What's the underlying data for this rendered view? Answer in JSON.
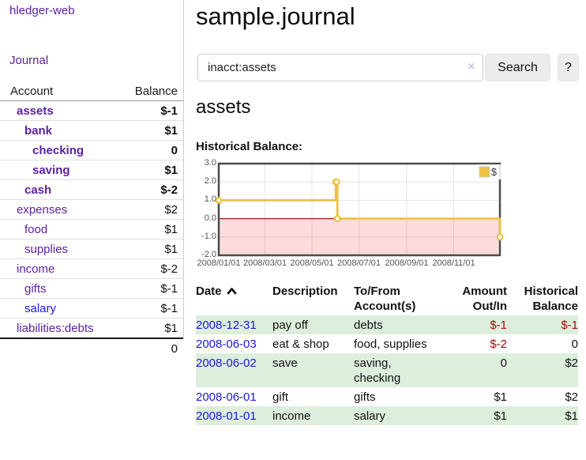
{
  "colors": {
    "link_purple": "#5c21a0",
    "link_blue": "#1a16dd",
    "negative_strong": "#a40808",
    "negative_weak": "#c07b7b",
    "stripe_green": "#ddeedd",
    "chart_gold": "#edc240",
    "chart_negative_region": "#fbdbdb",
    "chart_zero_line": "#9e1a1a",
    "chart_border": "#4c4c4c",
    "axis_text": "#545454",
    "button_bg": "#ececec"
  },
  "sidebar": {
    "brand": "hledger-web",
    "nav_journal": "Journal",
    "accounts_table": {
      "headers": {
        "account": "Account",
        "balance": "Balance"
      },
      "rows": [
        {
          "name": "assets",
          "level": 0,
          "bold": true,
          "balance": "$-1",
          "balance_class": "neg-strong"
        },
        {
          "name": "bank",
          "level": 1,
          "bold": true,
          "balance": "$1",
          "balance_class": ""
        },
        {
          "name": "checking",
          "level": 2,
          "bold": true,
          "balance": "0",
          "balance_class": ""
        },
        {
          "name": "saving",
          "level": 2,
          "bold": true,
          "balance": "$1",
          "balance_class": ""
        },
        {
          "name": "cash",
          "level": 1,
          "bold": true,
          "balance": "$-2",
          "balance_class": "neg-strong"
        },
        {
          "name": "expenses",
          "level": 0,
          "bold": false,
          "balance": "$2",
          "balance_class": ""
        },
        {
          "name": "food",
          "level": 1,
          "bold": false,
          "balance": "$1",
          "balance_class": ""
        },
        {
          "name": "supplies",
          "level": 1,
          "bold": false,
          "balance": "$1",
          "balance_class": ""
        },
        {
          "name": "income",
          "level": 0,
          "bold": false,
          "balance": "$-2",
          "balance_class": "neg-weak"
        },
        {
          "name": "gifts",
          "level": 1,
          "bold": false,
          "balance": "$-1",
          "balance_class": "neg-weak"
        },
        {
          "name": "salary",
          "level": 1,
          "bold": false,
          "balance": "$-1",
          "balance_class": "neg-weak",
          "link_class": "blue"
        },
        {
          "name": "liabilities:debts",
          "level": 0,
          "bold": false,
          "balance": "$1",
          "balance_class": ""
        }
      ],
      "total": "0"
    }
  },
  "main": {
    "title": "sample.journal",
    "search": {
      "value": "inacct:assets",
      "clear_icon": "×",
      "button": "Search",
      "help_button": "?"
    },
    "account_heading": "assets",
    "chart_heading": "Historical Balance:"
  },
  "chart_data": {
    "type": "line",
    "step": true,
    "title": "Historical Balance:",
    "x_type": "date",
    "xlim": [
      "2008-01-01",
      "2008-12-31"
    ],
    "ylim": [
      -2,
      3
    ],
    "grid": true,
    "negative_region_highlight": true,
    "legend": {
      "position": "top-right",
      "label": "$"
    },
    "yticks": [
      {
        "v": 3,
        "label": "3.0"
      },
      {
        "v": 2,
        "label": "2.0"
      },
      {
        "v": 1,
        "label": "1.0"
      },
      {
        "v": 0,
        "label": "0.0"
      },
      {
        "v": -1,
        "label": "-1.0"
      },
      {
        "v": -2,
        "label": "-2.0"
      }
    ],
    "xticks": [
      {
        "d": "2008-01-01",
        "label": "2008/01/01"
      },
      {
        "d": "2008-03-01",
        "label": "2008/03/01"
      },
      {
        "d": "2008-05-01",
        "label": "2008/05/01"
      },
      {
        "d": "2008-07-01",
        "label": "2008/07/01"
      },
      {
        "d": "2008-09-01",
        "label": "2008/09/01"
      },
      {
        "d": "2008-11-01",
        "label": "2008/11/01"
      }
    ],
    "series": [
      {
        "name": "$",
        "points": [
          [
            "2008-01-01",
            1
          ],
          [
            "2008-06-01",
            2
          ],
          [
            "2008-06-02",
            2
          ],
          [
            "2008-06-03",
            0
          ],
          [
            "2008-12-31",
            -1
          ]
        ]
      }
    ]
  },
  "register": {
    "headers": {
      "date": "Date",
      "description": "Description",
      "tofrom": "To/From Account(s)",
      "amount": "Amount Out/In",
      "balance": "Historical Balance"
    },
    "rows": [
      {
        "date": "2008-12-31",
        "description": "pay off",
        "accounts": "debts",
        "amount": "$-1",
        "amount_class": "neg",
        "balance": "$-1",
        "balance_class": "neg"
      },
      {
        "date": "2008-06-03",
        "description": "eat & shop",
        "accounts": "food, supplies",
        "amount": "$-2",
        "amount_class": "neg",
        "balance": "0",
        "balance_class": ""
      },
      {
        "date": "2008-06-02",
        "description": "save",
        "accounts": "saving, checking",
        "amount": "0",
        "amount_class": "",
        "balance": "$2",
        "balance_class": ""
      },
      {
        "date": "2008-06-01",
        "description": "gift",
        "accounts": "gifts",
        "amount": "$1",
        "amount_class": "",
        "balance": "$2",
        "balance_class": ""
      },
      {
        "date": "2008-01-01",
        "description": "income",
        "accounts": "salary",
        "amount": "$1",
        "amount_class": "",
        "balance": "$1",
        "balance_class": ""
      }
    ]
  }
}
